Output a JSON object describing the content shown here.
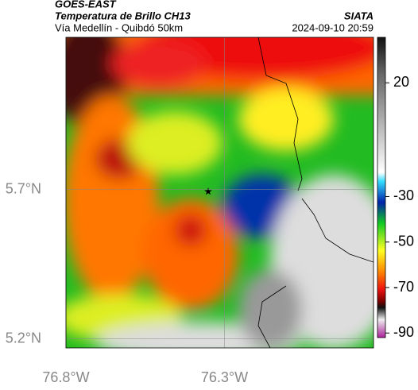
{
  "header": {
    "source": "GOES-EAST",
    "title": "Temperatura de Brillo CH13",
    "subtitle": "Vía Medellín - Quibdó 50km",
    "org": "SIATA",
    "datetime": "2024-09-10 20:59"
  },
  "map": {
    "xlim": [
      -76.8,
      -75.83
    ],
    "ylim": [
      5.17,
      6.21
    ],
    "xticks": [
      {
        "value": -76.8,
        "label": "76.8°W"
      },
      {
        "value": -76.3,
        "label": "76.3°W"
      }
    ],
    "yticks": [
      {
        "value": 5.7,
        "label": "5.7°N"
      },
      {
        "value": 5.2,
        "label": "5.2°N"
      }
    ],
    "grid": true
  },
  "colorbar": {
    "lim": [
      -92,
      40
    ],
    "ticks": [
      20,
      -30,
      -50,
      -70,
      -90
    ]
  }
}
